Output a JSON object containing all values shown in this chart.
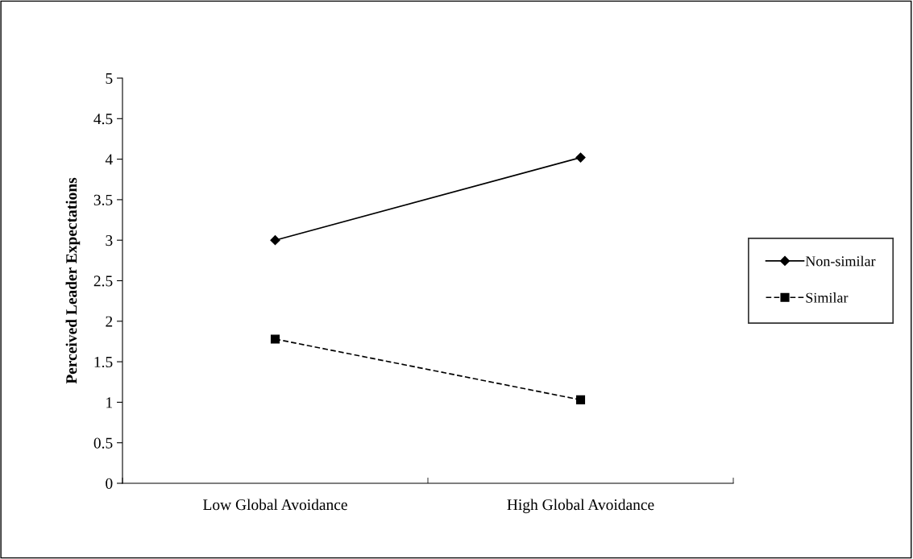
{
  "chart_data": {
    "type": "line",
    "ylabel": "Perceived Leader Expectations",
    "categories": [
      "Low Global Avoidance",
      "High Global Avoidance"
    ],
    "series": [
      {
        "name": "Non-similar",
        "color": "#000000",
        "values": [
          3.0,
          4.02
        ],
        "marker": "diamond",
        "line_style": "solid"
      },
      {
        "name": "Similar",
        "color": "#000000",
        "values": [
          1.78,
          1.03
        ],
        "marker": "square",
        "line_style": "dashed"
      }
    ],
    "ylim": [
      0,
      5
    ],
    "yticks": [
      0,
      0.5,
      1,
      1.5,
      2,
      2.5,
      3,
      3.5,
      4,
      4.5,
      5
    ],
    "grid": false,
    "legend": "right"
  }
}
